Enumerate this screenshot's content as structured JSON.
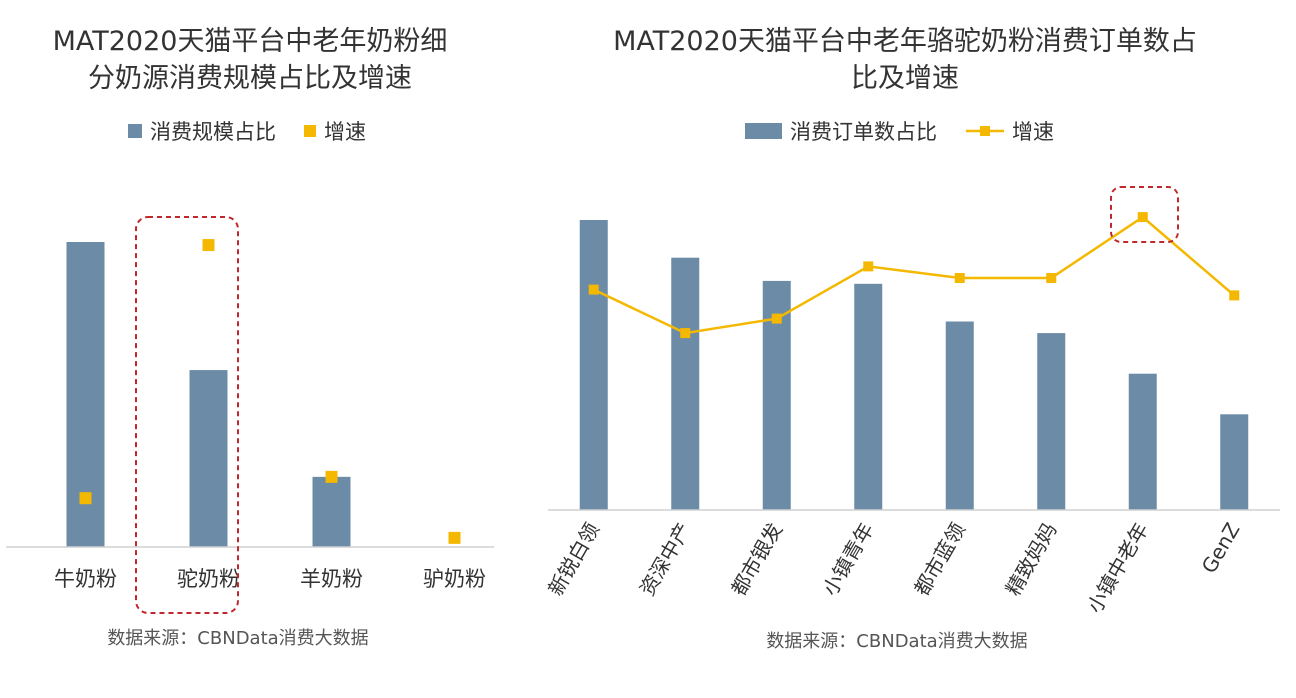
{
  "colors": {
    "bar": "#6b8ba6",
    "growth": "#f5b800",
    "highlight": "#c0282d",
    "axis": "#d0d0d0",
    "text": "#333333",
    "source": "#555555"
  },
  "chart_data": [
    {
      "type": "bar",
      "title_lines": [
        "MAT2020天猫平台中老年奶粉细",
        "分奶源消费规模占比及增速"
      ],
      "legend": {
        "bar": "消费规模占比",
        "growth": "增速"
      },
      "categories": [
        "牛奶粉",
        "驼奶粉",
        "羊奶粉",
        "驴奶粉"
      ],
      "series": [
        {
          "name": "消费规模占比",
          "kind": "bar",
          "values": [
            100,
            58,
            23,
            0
          ]
        },
        {
          "name": "增速",
          "kind": "marker",
          "values": [
            16,
            99,
            23,
            3
          ]
        }
      ],
      "ylim": [
        0,
        100
      ],
      "highlight_index": 1,
      "source": "数据来源：CBNData消费大数据"
    },
    {
      "type": "bar",
      "title_lines": [
        "MAT2020天猫平台中老年骆驼奶粉消费订单数占",
        "比及增速"
      ],
      "legend": {
        "bar": "消费订单数占比",
        "growth": "增速"
      },
      "categories": [
        "新锐白领",
        "资深中产",
        "都市银发",
        "小镇青年",
        "都市蓝领",
        "精致妈妈",
        "小镇中老年",
        "GenZ"
      ],
      "series": [
        {
          "name": "消费订单数占比",
          "kind": "bar",
          "values": [
            100,
            87,
            79,
            78,
            65,
            61,
            47,
            33
          ]
        },
        {
          "name": "增速",
          "kind": "line",
          "values": [
            76,
            61,
            66,
            84,
            80,
            80,
            101,
            74
          ]
        }
      ],
      "ylim": [
        0,
        100
      ],
      "highlight_index": 6,
      "source": "数据来源：CBNData消费大数据"
    }
  ]
}
